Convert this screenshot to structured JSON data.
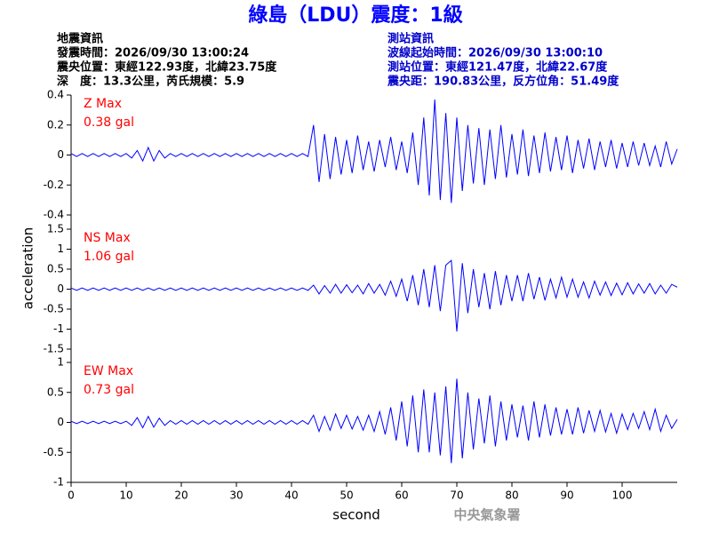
{
  "title": "綠島（LDU）震度：1級",
  "quake_info": [
    "地震資訊",
    "發震時間：2026/09/30 13:00:24",
    "震央位置：東經122.93度，北緯23.75度",
    "深　度：13.3公里，芮氏規模：5.9"
  ],
  "station_info": [
    "測站資訊",
    "波線起始時間：2026/09/30 13:00:10",
    "測站位置：東經121.47度，北緯22.67度",
    "震央距：190.83公里，反方位角：51.49度"
  ],
  "footer": "中央氣象署",
  "chart_data": {
    "type": "line",
    "xlabel": "second",
    "ylabel": "acceleration",
    "xlim": [
      0,
      110
    ],
    "xticks": [
      0,
      10,
      20,
      30,
      40,
      50,
      60,
      70,
      80,
      90,
      100
    ],
    "x": [
      0,
      1,
      2,
      3,
      4,
      5,
      6,
      7,
      8,
      9,
      10,
      11,
      12,
      13,
      14,
      15,
      16,
      17,
      18,
      19,
      20,
      21,
      22,
      23,
      24,
      25,
      26,
      27,
      28,
      29,
      30,
      31,
      32,
      33,
      34,
      35,
      36,
      37,
      38,
      39,
      40,
      41,
      42,
      43,
      44,
      45,
      46,
      47,
      48,
      49,
      50,
      51,
      52,
      53,
      54,
      55,
      56,
      57,
      58,
      59,
      60,
      61,
      62,
      63,
      64,
      65,
      66,
      67,
      68,
      69,
      70,
      71,
      72,
      73,
      74,
      75,
      76,
      77,
      78,
      79,
      80,
      81,
      82,
      83,
      84,
      85,
      86,
      87,
      88,
      89,
      90,
      91,
      92,
      93,
      94,
      95,
      96,
      97,
      98,
      99,
      100,
      101,
      102,
      103,
      104,
      105,
      106,
      107,
      108,
      109,
      110
    ],
    "panels": [
      {
        "name": "Z Max",
        "peak_label": "0.38 gal",
        "color": "#0000ff",
        "label_color": "#ff0000",
        "ylim": [
          -0.4,
          0.4
        ],
        "yticks": [
          -0.4,
          -0.2,
          0,
          0.2,
          0.4
        ],
        "values": [
          0.01,
          -0.01,
          0.01,
          -0.01,
          0.01,
          -0.01,
          0.01,
          -0.01,
          0.01,
          -0.01,
          0.01,
          -0.02,
          0.03,
          -0.04,
          0.05,
          -0.04,
          0.03,
          -0.02,
          0.01,
          -0.01,
          0.01,
          -0.01,
          0.01,
          -0.01,
          0.01,
          -0.01,
          0.01,
          -0.01,
          0.01,
          -0.01,
          0.01,
          -0.01,
          0.01,
          -0.01,
          0.01,
          -0.01,
          0.01,
          -0.01,
          0.01,
          -0.01,
          0.01,
          -0.01,
          0.01,
          -0.01,
          0.2,
          -0.18,
          0.14,
          -0.16,
          0.12,
          -0.13,
          0.1,
          -0.12,
          0.13,
          -0.1,
          0.09,
          -0.11,
          0.1,
          -0.08,
          0.12,
          -0.1,
          0.09,
          -0.12,
          0.15,
          -0.2,
          0.25,
          -0.27,
          0.37,
          -0.3,
          0.28,
          -0.32,
          0.25,
          -0.24,
          0.2,
          -0.19,
          0.18,
          -0.2,
          0.17,
          -0.16,
          0.2,
          -0.15,
          0.14,
          -0.13,
          0.17,
          -0.14,
          0.13,
          -0.12,
          0.15,
          -0.11,
          0.12,
          -0.1,
          0.13,
          -0.12,
          0.1,
          -0.09,
          0.11,
          -0.1,
          0.09,
          -0.08,
          0.1,
          -0.09,
          0.08,
          -0.08,
          0.09,
          -0.07,
          0.08,
          -0.07,
          0.06,
          -0.08,
          0.09,
          -0.06,
          0.04
        ]
      },
      {
        "name": "NS Max",
        "peak_label": "1.06 gal",
        "color": "#0000ff",
        "label_color": "#ff0000",
        "ylim": [
          -1.5,
          1.5
        ],
        "yticks": [
          -1.5,
          -1,
          -0.5,
          0,
          0.5,
          1,
          1.5
        ],
        "values": [
          0.03,
          -0.03,
          0.03,
          -0.03,
          0.03,
          -0.03,
          0.03,
          -0.03,
          0.03,
          -0.03,
          0.03,
          -0.03,
          0.03,
          -0.03,
          0.03,
          -0.03,
          0.03,
          -0.03,
          0.03,
          -0.03,
          0.03,
          -0.03,
          0.03,
          -0.03,
          0.03,
          -0.03,
          0.03,
          -0.03,
          0.03,
          -0.03,
          0.03,
          -0.03,
          0.03,
          -0.03,
          0.03,
          -0.03,
          0.03,
          -0.03,
          0.03,
          -0.03,
          0.03,
          -0.03,
          0.03,
          -0.03,
          0.1,
          -0.12,
          0.09,
          -0.1,
          0.12,
          -0.1,
          0.11,
          -0.09,
          0.1,
          -0.12,
          0.14,
          -0.1,
          0.12,
          -0.15,
          0.2,
          -0.18,
          0.25,
          -0.3,
          0.35,
          -0.4,
          0.5,
          -0.45,
          0.6,
          -0.55,
          0.6,
          0.72,
          -1.06,
          0.65,
          -0.6,
          0.5,
          -0.45,
          0.4,
          -0.5,
          0.45,
          -0.4,
          0.35,
          -0.3,
          0.35,
          -0.3,
          0.4,
          -0.25,
          0.3,
          -0.28,
          0.25,
          -0.22,
          0.3,
          -0.2,
          0.25,
          -0.2,
          0.18,
          -0.22,
          0.2,
          -0.15,
          0.18,
          -0.16,
          0.15,
          -0.14,
          0.16,
          -0.12,
          0.13,
          -0.1,
          0.14,
          -0.12,
          0.1,
          -0.1,
          0.12,
          0.05
        ]
      },
      {
        "name": "EW Max",
        "peak_label": "0.73 gal",
        "color": "#0000ff",
        "label_color": "#ff0000",
        "ylim": [
          -1,
          1
        ],
        "yticks": [
          -1,
          -0.5,
          0,
          0.5,
          1
        ],
        "values": [
          0.02,
          -0.02,
          0.02,
          -0.02,
          0.02,
          -0.02,
          0.02,
          -0.02,
          0.02,
          -0.02,
          0.02,
          -0.05,
          0.08,
          -0.09,
          0.1,
          -0.08,
          0.07,
          -0.05,
          0.03,
          -0.03,
          0.03,
          -0.03,
          0.03,
          -0.03,
          0.03,
          -0.03,
          0.03,
          -0.03,
          0.03,
          -0.03,
          0.03,
          -0.03,
          0.03,
          -0.03,
          0.03,
          -0.03,
          0.03,
          -0.03,
          0.03,
          -0.03,
          0.03,
          -0.03,
          0.03,
          -0.03,
          0.12,
          -0.15,
          0.1,
          -0.13,
          0.14,
          -0.1,
          0.12,
          -0.11,
          0.1,
          -0.13,
          0.12,
          -0.15,
          0.18,
          -0.2,
          0.25,
          -0.3,
          0.35,
          -0.4,
          0.45,
          -0.5,
          0.55,
          -0.5,
          0.5,
          -0.55,
          0.6,
          -0.68,
          0.73,
          -0.6,
          0.5,
          -0.45,
          0.4,
          -0.35,
          0.45,
          -0.4,
          0.35,
          -0.3,
          0.3,
          -0.25,
          0.28,
          -0.3,
          0.35,
          -0.25,
          0.3,
          -0.22,
          0.25,
          -0.2,
          0.22,
          -0.2,
          0.25,
          -0.18,
          0.2,
          -0.15,
          0.2,
          -0.16,
          0.15,
          -0.18,
          0.14,
          -0.12,
          0.15,
          -0.1,
          0.18,
          -0.12,
          0.22,
          -0.15,
          0.12,
          -0.1,
          0.05
        ]
      }
    ]
  }
}
